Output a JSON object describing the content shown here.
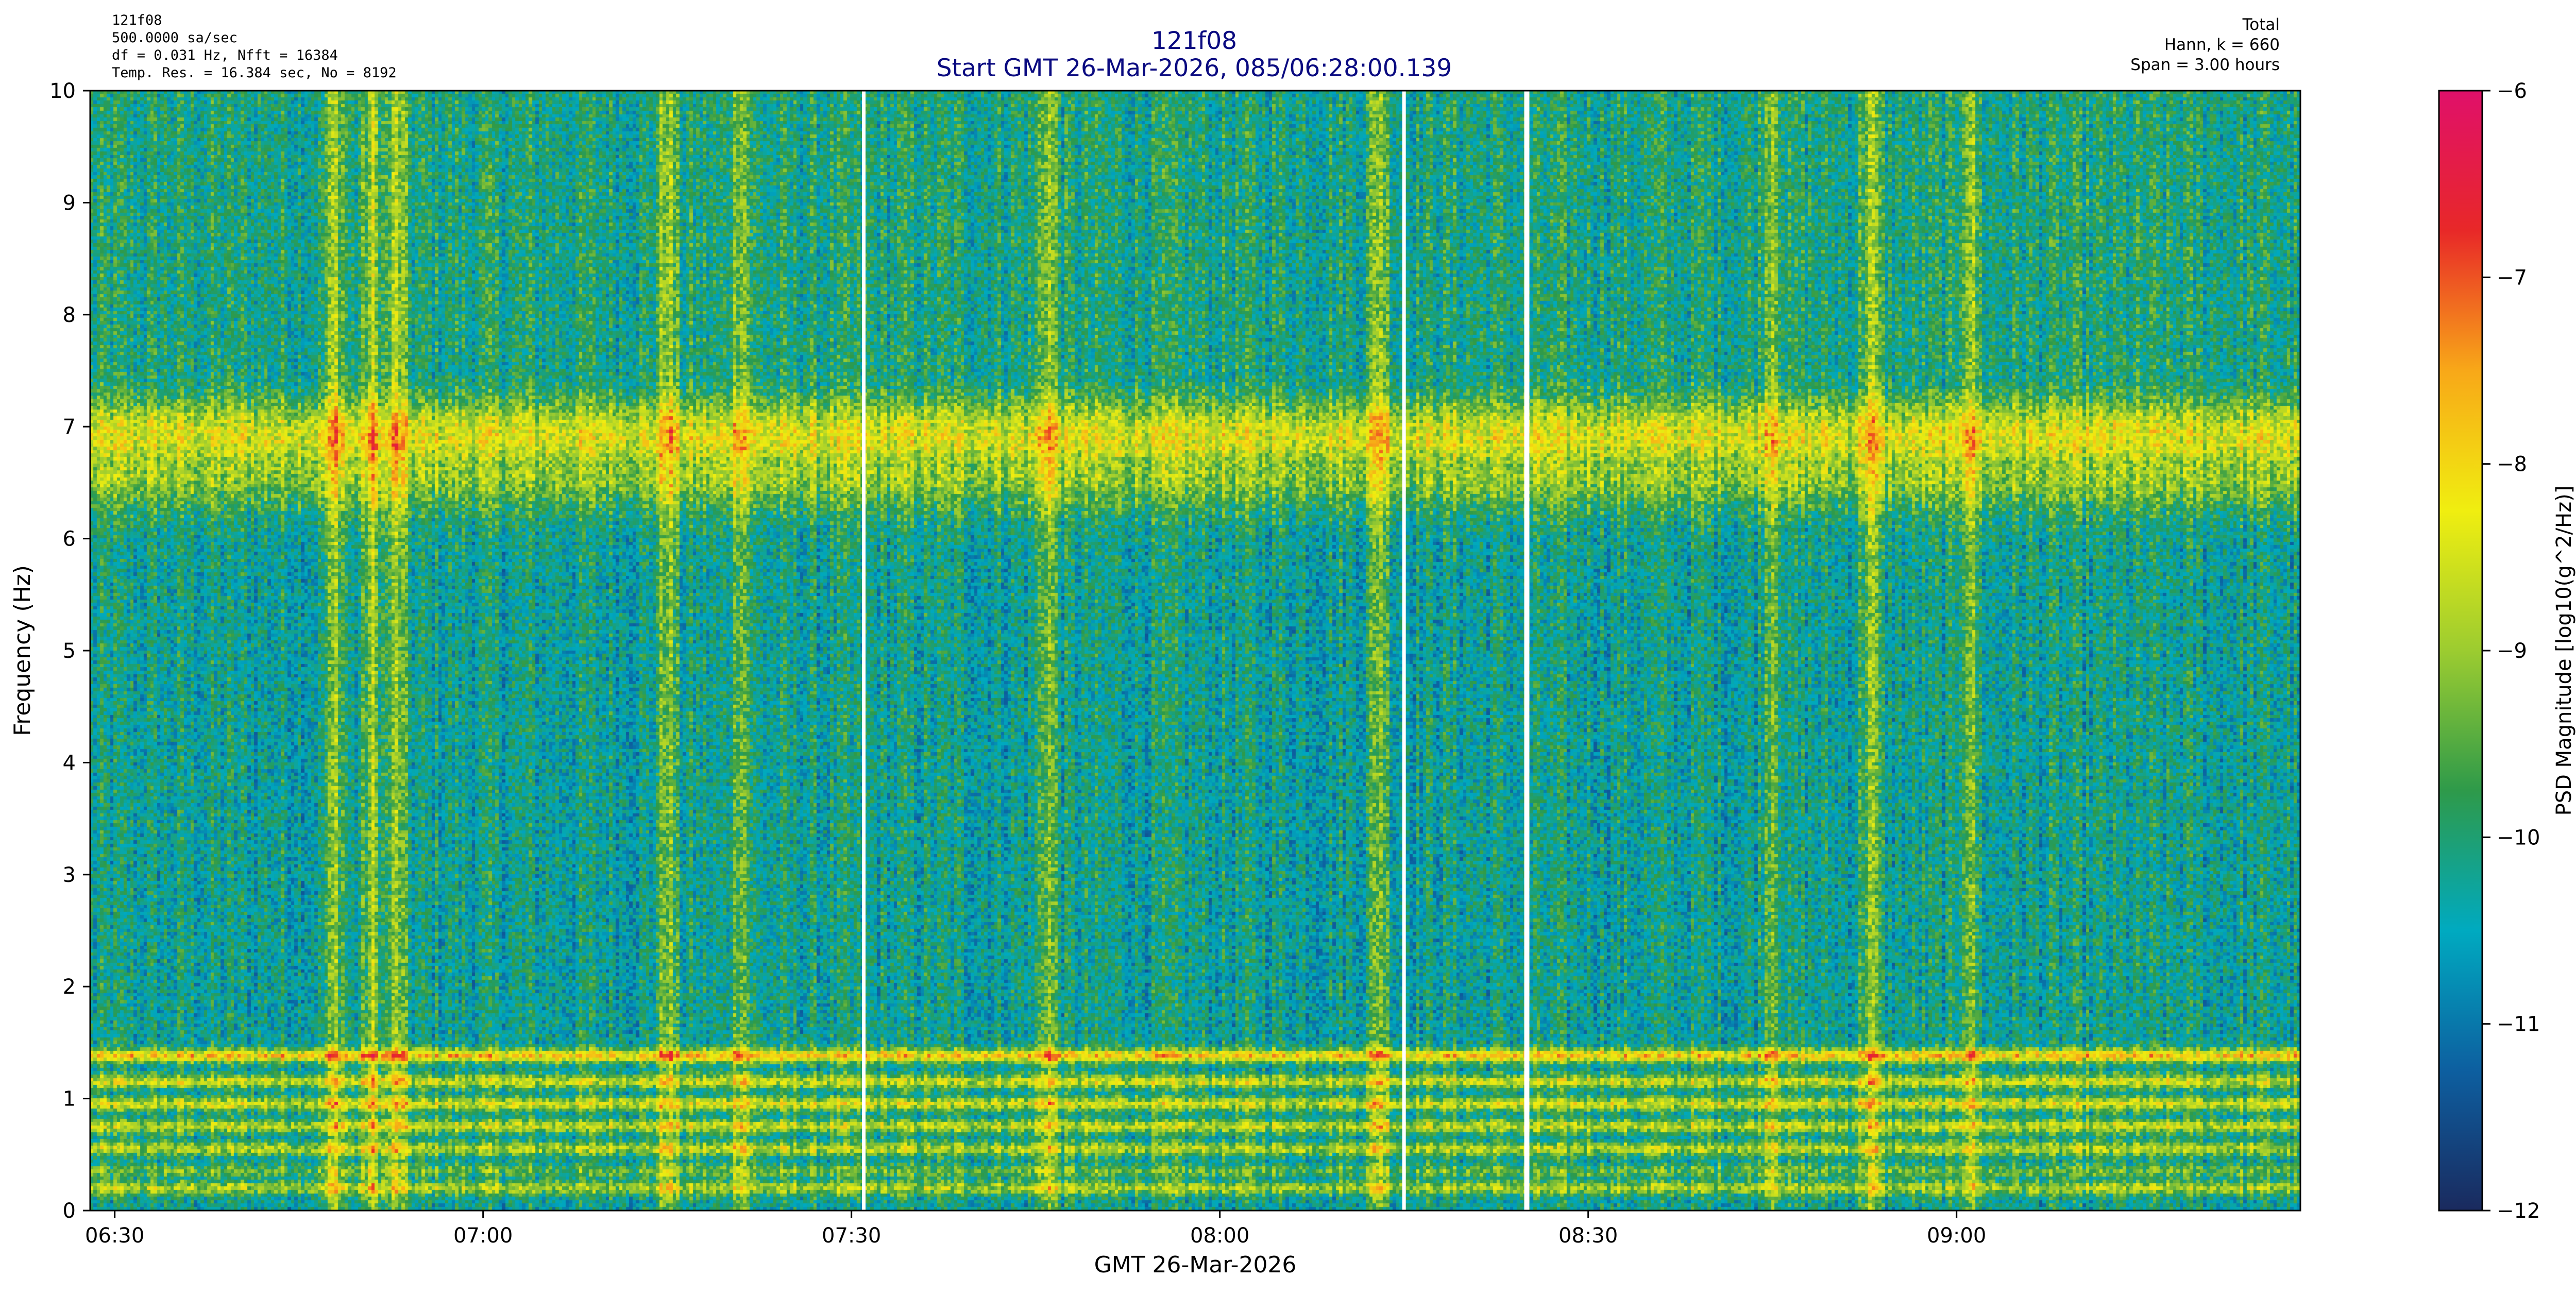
{
  "header": {
    "left_lines": [
      "121f08",
      "500.0000 sa/sec",
      "df = 0.031 Hz,  Nfft = 16384",
      "Temp. Res. = 16.384 sec, No = 8192"
    ],
    "right_lines": [
      "Total",
      "Hann, k = 660",
      "Span = 3.00 hours"
    ],
    "title_line1": "121f08",
    "title_line2": "Start GMT 26-Mar-2026, 085/06:28:00.139"
  },
  "chart_data": {
    "type": "heatmap",
    "title": "121f08",
    "subtitle": "Start GMT 26-Mar-2026, 085/06:28:00.139",
    "xlabel": "GMT 26-Mar-2026",
    "ylabel": "Frequency (Hz)",
    "colorbar_label": "PSD Magnitude [log10(g^2/Hz)]",
    "x_range": [
      "06:28",
      "09:28"
    ],
    "x_ticks": [
      "06:30",
      "07:00",
      "07:30",
      "08:00",
      "08:30",
      "09:00"
    ],
    "y_range": [
      0,
      10
    ],
    "y_ticks": [
      0,
      1,
      2,
      3,
      4,
      5,
      6,
      7,
      8,
      9,
      10
    ],
    "color_range": [
      -12,
      -6
    ],
    "color_ticks": [
      -12,
      -11,
      -10,
      -9,
      -8,
      -7,
      -6
    ],
    "colormap": [
      "#1a2a5e",
      "#0d5fa0",
      "#00aac0",
      "#2e9a4a",
      "#9ccc30",
      "#f0ee10",
      "#f8a818",
      "#e82828",
      "#e0106a"
    ],
    "background_psd": -10.3,
    "horizontal_bands": [
      {
        "freq_hz": 0.2,
        "psd": -8.9
      },
      {
        "freq_hz": 0.35,
        "psd": -9.4
      },
      {
        "freq_hz": 0.55,
        "psd": -8.8
      },
      {
        "freq_hz": 0.75,
        "psd": -8.7
      },
      {
        "freq_hz": 0.95,
        "psd": -8.5
      },
      {
        "freq_hz": 1.15,
        "psd": -8.6
      },
      {
        "freq_hz": 1.38,
        "psd": -7.9
      },
      {
        "freq_hz": 6.9,
        "psd": -8.4
      },
      {
        "freq_hz": 6.6,
        "psd": -9.0
      }
    ],
    "vertical_streaks": [
      "06:48",
      "06:51",
      "06:53",
      "07:15",
      "07:21",
      "07:46",
      "08:13",
      "08:45",
      "08:53",
      "09:01"
    ],
    "data_gaps": [
      "07:31",
      "08:15",
      "08:25"
    ]
  }
}
